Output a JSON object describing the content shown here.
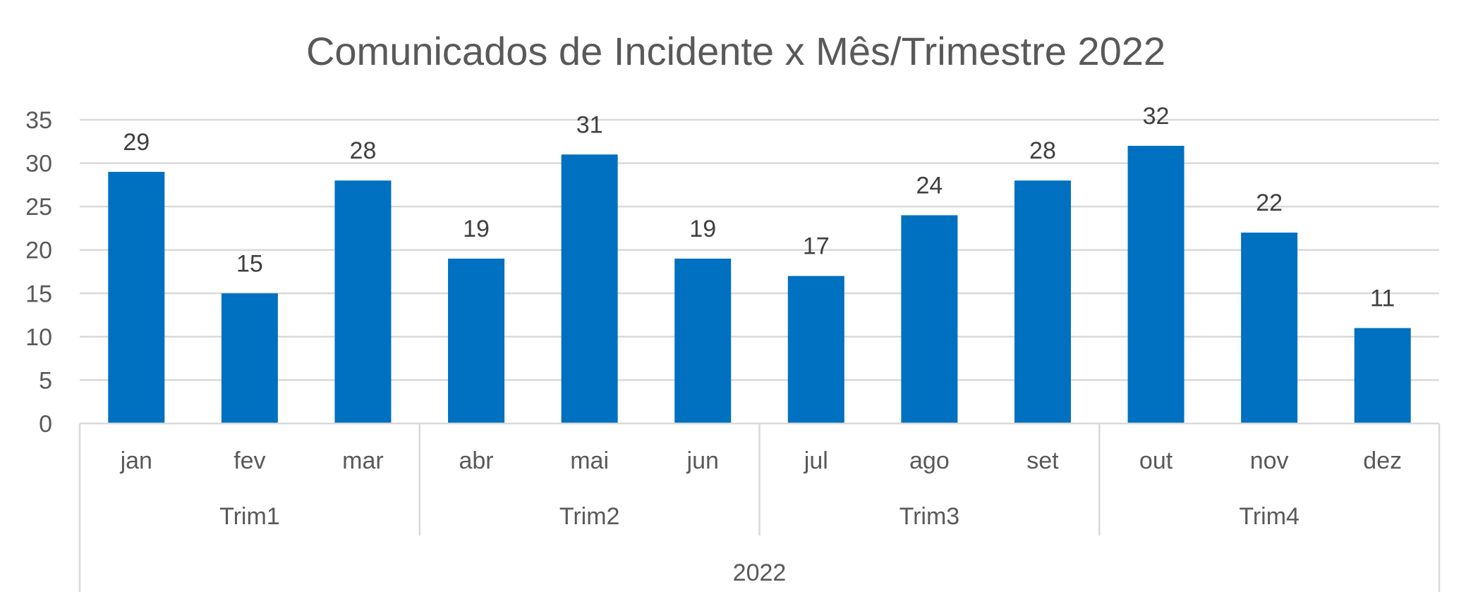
{
  "chart_data": {
    "type": "bar",
    "title": "Comunicados de Incidente x Mês/Trimestre 2022",
    "categories": [
      "jan",
      "fev",
      "mar",
      "abr",
      "mai",
      "jun",
      "jul",
      "ago",
      "set",
      "out",
      "nov",
      "dez"
    ],
    "values": [
      29,
      15,
      28,
      19,
      31,
      19,
      17,
      24,
      28,
      32,
      22,
      11
    ],
    "quarters": [
      {
        "label": "Trim1",
        "months": 3
      },
      {
        "label": "Trim2",
        "months": 3
      },
      {
        "label": "Trim3",
        "months": 3
      },
      {
        "label": "Trim4",
        "months": 3
      }
    ],
    "year": "2022",
    "ylim": [
      0,
      35
    ],
    "yticks": [
      0,
      5,
      10,
      15,
      20,
      25,
      30,
      35
    ],
    "grid": true,
    "data_labels": true,
    "bar_color": "#0070c0"
  }
}
